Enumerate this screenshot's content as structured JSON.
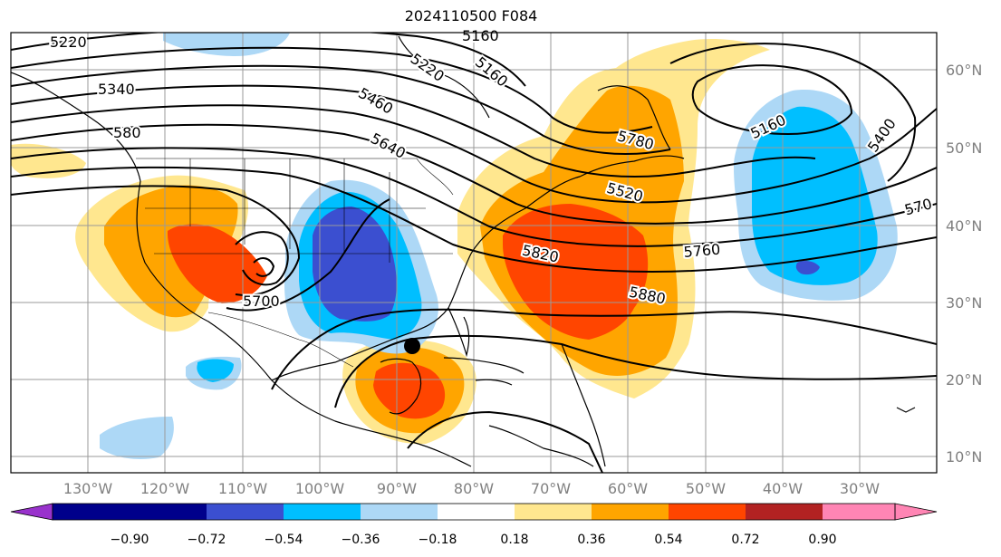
{
  "title": "2024110500 F084",
  "map": {
    "lat_labels": [
      "60°N",
      "50°N",
      "40°N",
      "30°N",
      "20°N",
      "10°N"
    ],
    "lon_labels": [
      "130°W",
      "120°W",
      "110°W",
      "100°W",
      "90°W",
      "80°W",
      "70°W",
      "60°W",
      "50°W",
      "40°W",
      "30°W"
    ],
    "contour_labels": [
      "5220",
      "5160",
      "5340",
      "5220",
      "5160",
      "5460",
      "580",
      "5640",
      "5160",
      "5400",
      "5780",
      "5520",
      "5700",
      "5820",
      "5760",
      "570",
      "5880"
    ],
    "marker": "storm-center"
  },
  "colorbar": {
    "labels": [
      "−0.90",
      "−0.72",
      "−0.54",
      "−0.36",
      "−0.18",
      "0.18",
      "0.36",
      "0.54",
      "0.72",
      "0.90"
    ],
    "colors": [
      "#9932cc",
      "#00008b",
      "#3b4fd0",
      "#00bfff",
      "#add8f6",
      "#ffffff",
      "#ffe78f",
      "#ffa500",
      "#ff4500",
      "#b22222",
      "#ff85b4"
    ]
  }
}
